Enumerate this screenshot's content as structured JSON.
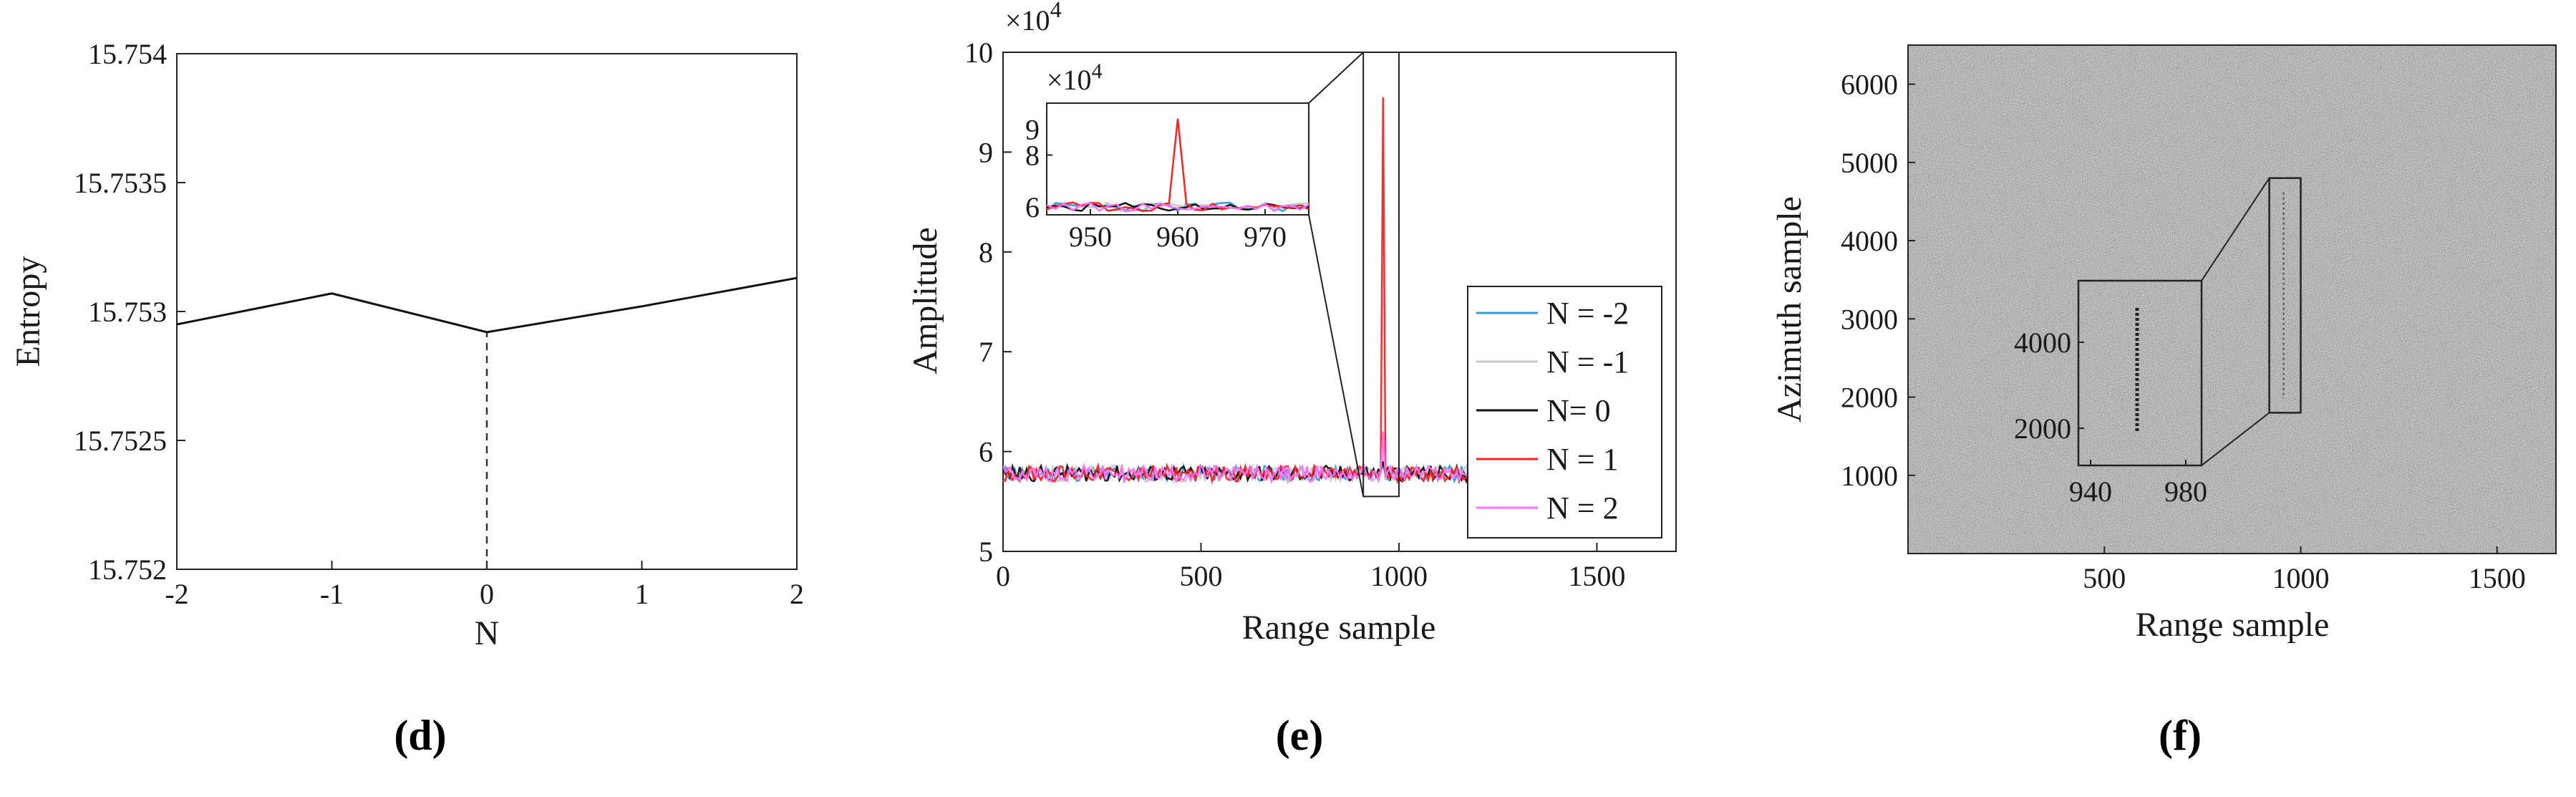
{
  "chart_data": [
    {
      "panel": "d",
      "type": "line",
      "caption": "(d)",
      "xlabel": "N",
      "ylabel": "Entropy",
      "xlim": [
        -2,
        2
      ],
      "ylim": [
        15.752,
        15.754
      ],
      "xticks": [
        -2,
        -1,
        0,
        1,
        2
      ],
      "xtick_labels": [
        "-2",
        "-1",
        "0",
        "1",
        "2"
      ],
      "yticks": [
        15.752,
        15.7525,
        15.753,
        15.7535,
        15.754
      ],
      "ytick_labels": [
        "15.752",
        "15.7525",
        "15.753",
        "15.7535",
        "15.754"
      ],
      "x": [
        -2,
        -1,
        0,
        1,
        2
      ],
      "values": [
        15.75295,
        15.75307,
        15.75292,
        15.75302,
        15.75313
      ],
      "marker_line": {
        "x": 0,
        "from": 15.752,
        "to": 15.75292,
        "style": "dashed"
      }
    },
    {
      "panel": "e",
      "type": "line",
      "caption": "(e)",
      "xlabel": "Range sample",
      "ylabel": "Amplitude",
      "exponent_label": "×10",
      "exponent_power": "4",
      "xlim": [
        0,
        1700
      ],
      "ylim": [
        5,
        10
      ],
      "xticks": [
        0,
        500,
        1000,
        1500
      ],
      "xtick_labels": [
        "0",
        "500",
        "1000",
        "1500"
      ],
      "yticks": [
        5,
        6,
        7,
        8,
        9,
        10
      ],
      "ytick_labels": [
        "5",
        "6",
        "7",
        "8",
        "9",
        "10"
      ],
      "baseline": 5.78,
      "series": [
        {
          "name": "N = -2",
          "color": "#2e9fd6",
          "peak_at": 960,
          "peak_value": 6.2
        },
        {
          "name": "N = -1",
          "color": "#c8c8c8",
          "peak_at": 960,
          "peak_value": 5.95
        },
        {
          "name": "N= 0",
          "color": "#111111",
          "peak_at": 960,
          "peak_value": 5.9
        },
        {
          "name": "N = 1",
          "color": "#ff2020",
          "peak_at": 960,
          "peak_value": 9.55
        },
        {
          "name": "N = 2",
          "color": "#ff70ff",
          "peak_at": 960,
          "peak_value": 6.2
        }
      ],
      "zoom_box": {
        "x": [
          910,
          1000
        ],
        "y": [
          5.55,
          10
        ]
      },
      "inset": {
        "exponent_label": "×10",
        "exponent_power": "4",
        "xlim": [
          945,
          975
        ],
        "ylim": [
          5.7,
          10
        ],
        "xticks": [
          950,
          960,
          970
        ],
        "xtick_labels": [
          "950",
          "960",
          "970"
        ],
        "yticks": [
          6,
          8
        ],
        "ytick_labels": [
          "6",
          "8"
        ],
        "note": "9",
        "peak_x": 960,
        "peak_value": 9.4
      }
    },
    {
      "panel": "f",
      "type": "heatmap",
      "caption": "(f)",
      "xlabel": "Range sample",
      "ylabel": "Azimuth sample",
      "xlim": [
        0,
        1650
      ],
      "ylim": [
        0,
        6500
      ],
      "xticks": [
        500,
        1000,
        1500
      ],
      "xtick_labels": [
        "500",
        "1000",
        "1500"
      ],
      "yticks": [
        1000,
        2000,
        3000,
        4000,
        5000,
        6000
      ],
      "ytick_labels": [
        "1000",
        "2000",
        "3000",
        "4000",
        "5000",
        "6000"
      ],
      "target_box": {
        "x": [
          920,
          1000
        ],
        "y": [
          1800,
          4800
        ]
      },
      "inset": {
        "xticks": [
          940,
          980
        ],
        "xtick_labels": [
          "940",
          "980"
        ],
        "yticks": [
          2000,
          4000
        ],
        "ytick_labels": [
          "2000",
          "4000"
        ]
      }
    }
  ]
}
